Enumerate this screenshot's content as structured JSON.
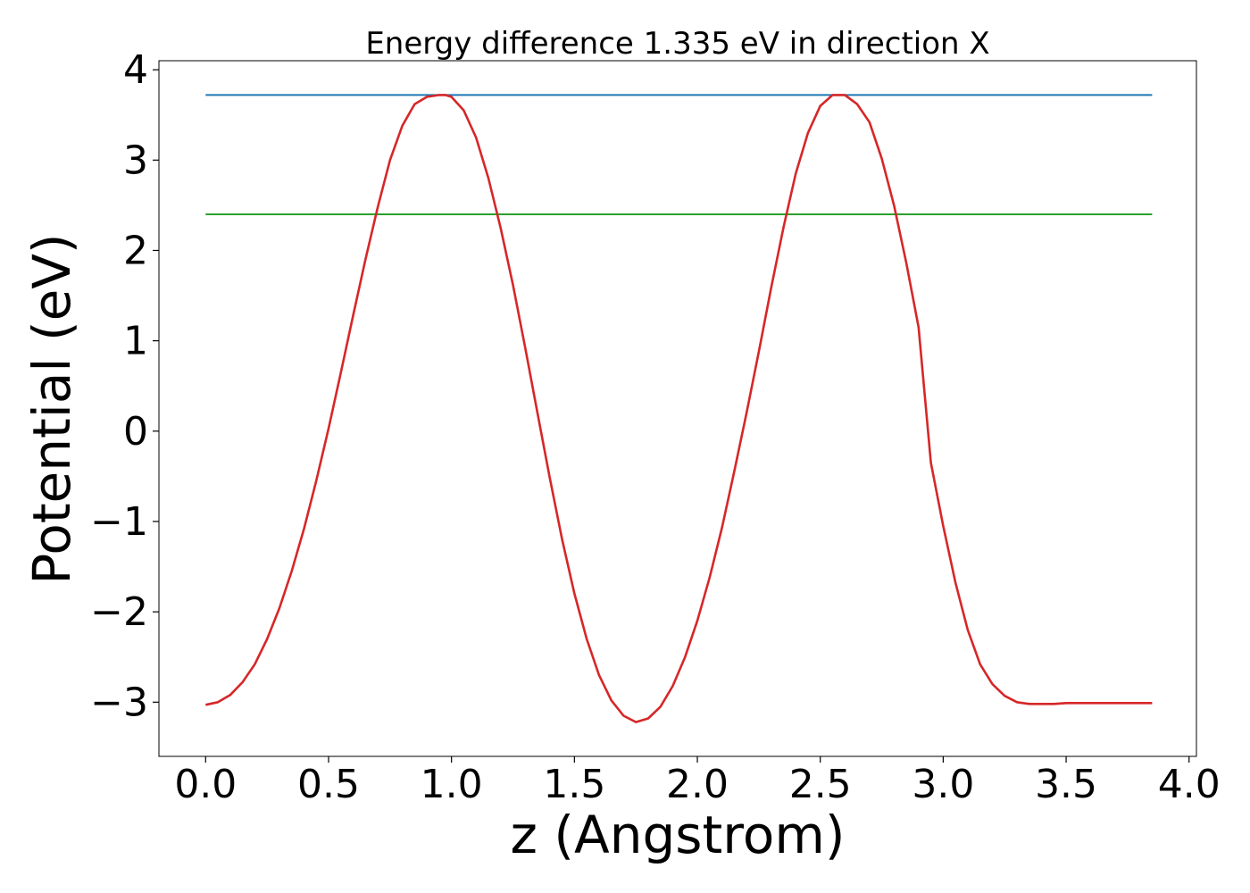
{
  "chart_data": {
    "type": "line",
    "title": "Energy difference 1.335 eV in direction X",
    "xlabel": "z (Angstrom)",
    "ylabel": "Potential (eV)",
    "xlim": [
      -0.19,
      4.03
    ],
    "ylim": [
      -3.6,
      4.1
    ],
    "x_ticks": [
      0.0,
      0.5,
      1.0,
      1.5,
      2.0,
      2.5,
      3.0,
      3.5,
      4.0
    ],
    "x_tick_labels": [
      "0.0",
      "0.5",
      "1.0",
      "1.5",
      "2.0",
      "2.5",
      "3.0",
      "3.5",
      "4.0"
    ],
    "y_ticks": [
      -3,
      -2,
      -1,
      0,
      1,
      2,
      3,
      4
    ],
    "y_tick_labels": [
      "−3",
      "−2",
      "−1",
      "0",
      "1",
      "2",
      "3",
      "4"
    ],
    "grid": false,
    "series": [
      {
        "color": "#1f77b4",
        "x": [
          0.0,
          3.85
        ],
        "y": [
          3.72,
          3.72
        ]
      },
      {
        "color": "#2ca02c",
        "x": [
          0.0,
          3.85
        ],
        "y": [
          2.4,
          2.4
        ]
      },
      {
        "color": "#d62728",
        "x": [
          0.0,
          0.05,
          0.1,
          0.15,
          0.2,
          0.25,
          0.3,
          0.35,
          0.4,
          0.45,
          0.5,
          0.55,
          0.6,
          0.65,
          0.7,
          0.75,
          0.8,
          0.85,
          0.9,
          0.95,
          0.975,
          1.0,
          1.05,
          1.1,
          1.15,
          1.2,
          1.25,
          1.3,
          1.35,
          1.4,
          1.45,
          1.5,
          1.55,
          1.6,
          1.65,
          1.7,
          1.75,
          1.8,
          1.85,
          1.9,
          1.95,
          2.0,
          2.05,
          2.1,
          2.15,
          2.2,
          2.25,
          2.3,
          2.35,
          2.4,
          2.45,
          2.5,
          2.55,
          2.6,
          2.65,
          2.7,
          2.75,
          2.8,
          2.85,
          2.9,
          2.925,
          2.95,
          3.0,
          3.05,
          3.1,
          3.15,
          3.2,
          3.25,
          3.3,
          3.35,
          3.4,
          3.45,
          3.5,
          3.55,
          3.6,
          3.65,
          3.7,
          3.75,
          3.8,
          3.85
        ],
        "y": [
          -3.03,
          -3.0,
          -2.92,
          -2.78,
          -2.58,
          -2.3,
          -1.96,
          -1.55,
          -1.08,
          -0.55,
          0.03,
          0.65,
          1.28,
          1.9,
          2.48,
          3.0,
          3.38,
          3.62,
          3.7,
          3.72,
          3.72,
          3.7,
          3.55,
          3.25,
          2.8,
          2.25,
          1.62,
          0.92,
          0.2,
          -0.52,
          -1.2,
          -1.8,
          -2.3,
          -2.7,
          -2.98,
          -3.15,
          -3.22,
          -3.18,
          -3.05,
          -2.82,
          -2.5,
          -2.1,
          -1.62,
          -1.07,
          -0.45,
          0.2,
          0.88,
          1.58,
          2.25,
          2.85,
          3.3,
          3.6,
          3.72,
          3.72,
          3.62,
          3.42,
          3.02,
          2.5,
          1.86,
          1.15,
          0.4,
          -0.35,
          -1.05,
          -1.68,
          -2.2,
          -2.58,
          -2.8,
          -2.93,
          -3.0,
          -3.02,
          -3.02,
          -3.02,
          -3.01,
          -3.01,
          -3.01,
          -3.01,
          -3.01,
          -3.01,
          -3.01,
          -3.01
        ]
      }
    ]
  }
}
